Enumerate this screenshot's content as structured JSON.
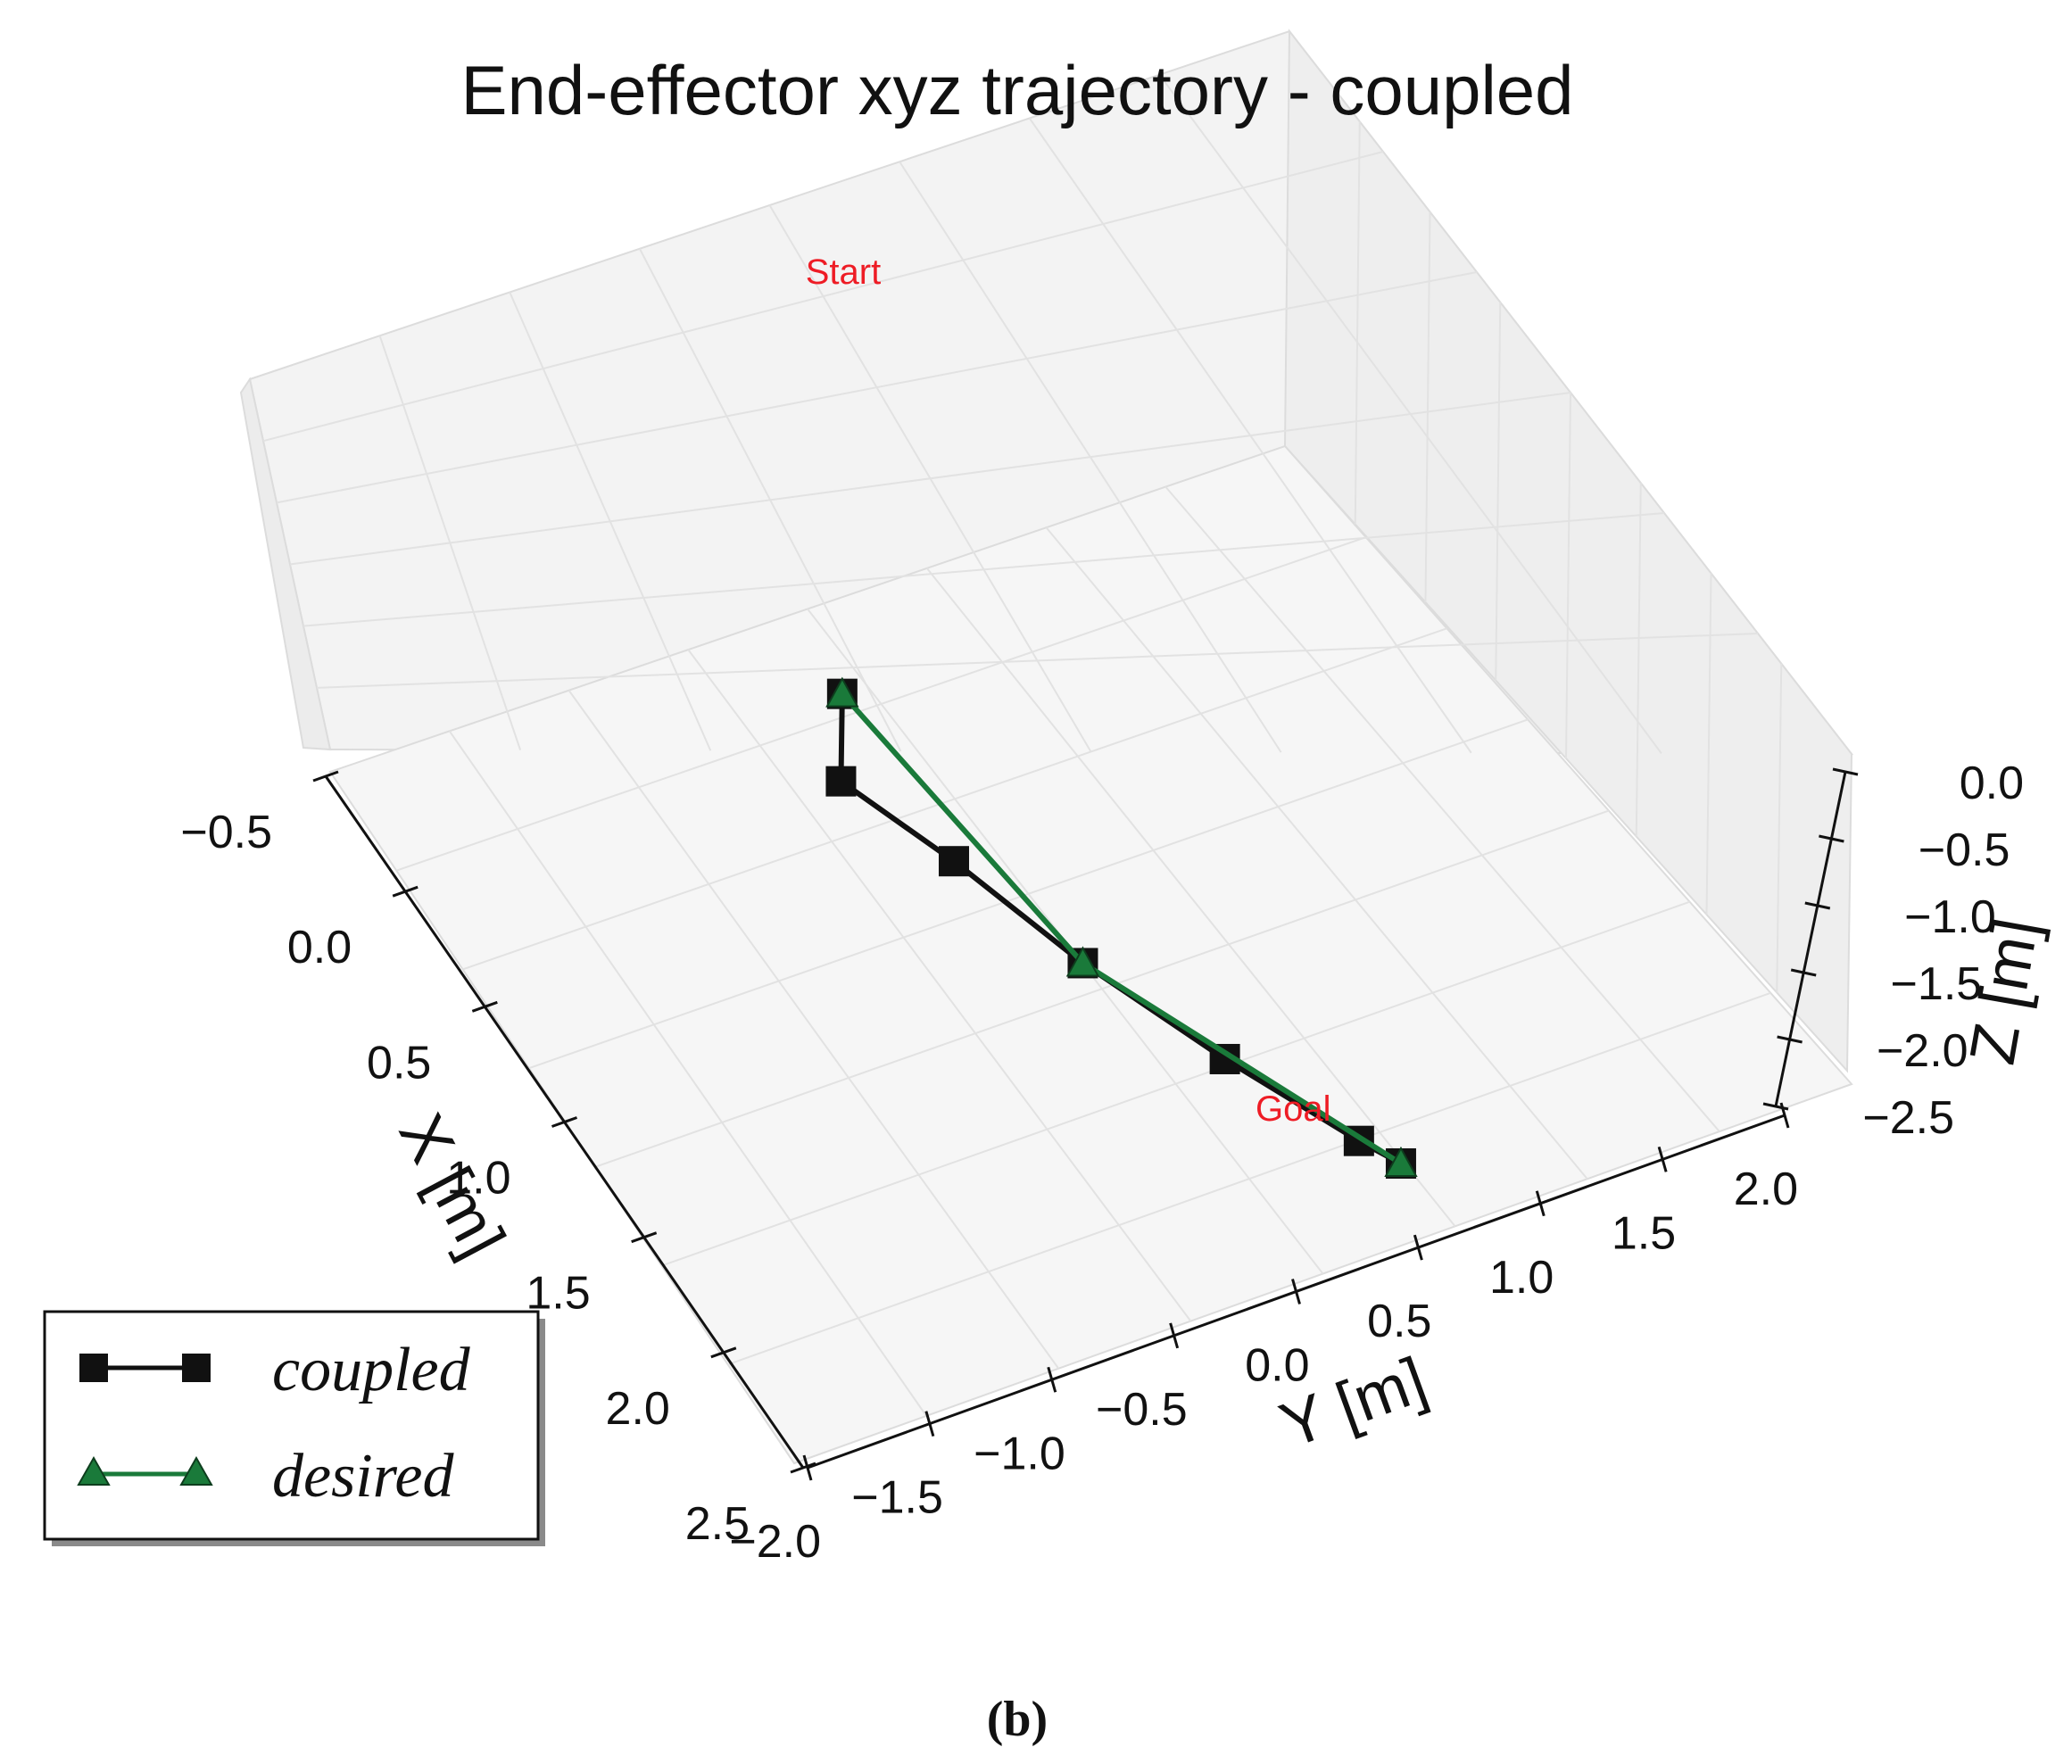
{
  "chart_data": {
    "type": "line",
    "projection": "3d",
    "title": "End-effector xyz trajectory - coupled",
    "xlabel": "X [m]",
    "ylabel": "Y [m]",
    "zlabel": "Z [m]",
    "xlim": [
      -0.5,
      2.5
    ],
    "ylim": [
      -2.0,
      2.0
    ],
    "zlim": [
      -2.5,
      0.0
    ],
    "x_ticks": [
      "−0.5",
      "0.0",
      "0.5",
      "1.0",
      "1.5",
      "2.0",
      "2.5"
    ],
    "y_ticks": [
      "−2.0",
      "−1.5",
      "−1.0",
      "−0.5",
      "0.0",
      "0.5",
      "1.0",
      "1.5",
      "2.0"
    ],
    "z_ticks": [
      "−2.5",
      "−2.0",
      "−1.5",
      "−1.0",
      "−0.5",
      "0.0"
    ],
    "grid": true,
    "legend_position": "lower-left",
    "series": [
      {
        "name": "coupled",
        "color": "#111111",
        "marker": "square",
        "x": [
          0.0,
          0.0,
          0.3,
          0.7,
          1.1,
          1.45,
          1.55
        ],
        "y": [
          -0.35,
          -0.35,
          -0.1,
          0.15,
          0.45,
          0.75,
          0.85
        ],
        "z": [
          0.0,
          -0.7,
          -0.9,
          -1.05,
          -1.2,
          -1.35,
          -1.4
        ]
      },
      {
        "name": "desired",
        "color": "#1a7a3a",
        "marker": "triangle",
        "x": [
          0.0,
          0.7,
          1.55
        ],
        "y": [
          -0.35,
          0.15,
          0.85
        ],
        "z": [
          0.0,
          -1.05,
          -1.4
        ]
      }
    ],
    "annotations": [
      {
        "text": "Start",
        "color": "#ee1c25",
        "at": [
          0.0,
          -0.35,
          0.0
        ]
      },
      {
        "text": "Goal",
        "color": "#ee1c25",
        "at": [
          1.55,
          0.85,
          -1.4
        ]
      }
    ]
  },
  "caption": "(b)"
}
